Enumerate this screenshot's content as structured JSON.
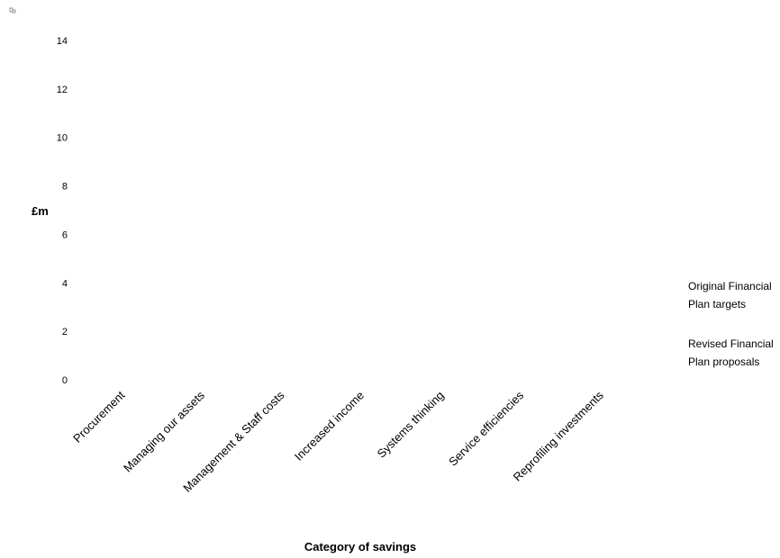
{
  "chart_data": {
    "type": "bar",
    "title": "",
    "xlabel": "Category of savings",
    "ylabel": "£m",
    "ylim": [
      0,
      14
    ],
    "yticks": [
      0,
      2,
      4,
      6,
      8,
      10,
      12,
      14
    ],
    "categories": [
      "Procurement",
      "Managing our assets",
      "Management & Staff costs",
      "Increased income",
      "Systems thinking",
      "Service efficiencies",
      "Reprofiling investments"
    ],
    "series": [
      {
        "name": "Original Financial Plan targets",
        "legend_lines": [
          "Original Financial",
          "Plan targets"
        ],
        "values": [
          null,
          null,
          null,
          null,
          null,
          null,
          null
        ]
      },
      {
        "name": "Revised Financial Plan proposals",
        "legend_lines": [
          "Revised Financial",
          "Plan proposals"
        ],
        "values": [
          null,
          null,
          null,
          null,
          null,
          null,
          null
        ]
      }
    ],
    "grid": false,
    "legend_position": "right"
  }
}
